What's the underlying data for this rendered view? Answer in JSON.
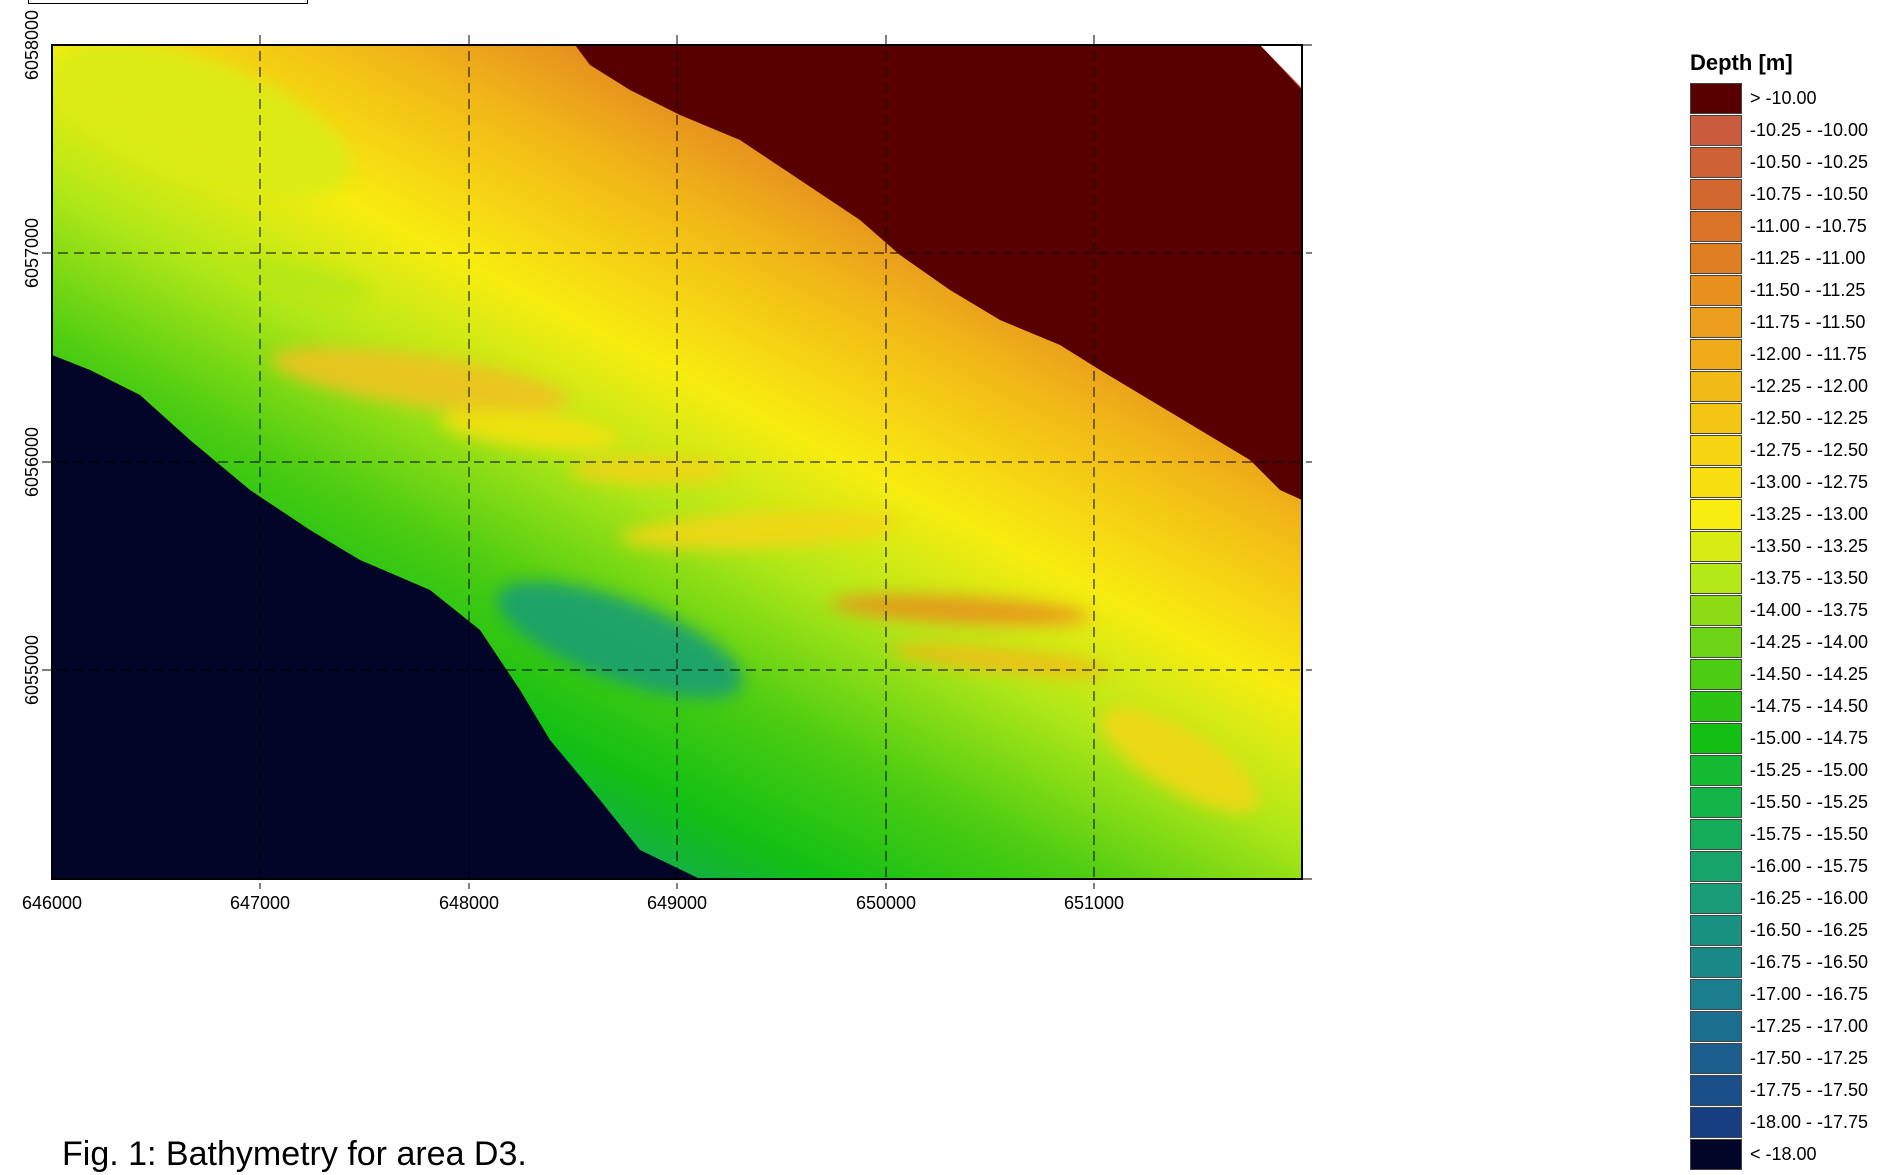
{
  "caption": "Fig. 1: Bathymetry for area D3.",
  "legend": {
    "title": "Depth [m]",
    "classes": [
      {
        "label": "> -10.00",
        "color": "#580000"
      },
      {
        "label": "-10.25 - -10.00",
        "color": "#c85c3c"
      },
      {
        "label": "-10.50 - -10.25",
        "color": "#cc6236"
      },
      {
        "label": "-10.75 - -10.50",
        "color": "#d2682f"
      },
      {
        "label": "-11.00 - -10.75",
        "color": "#d87328"
      },
      {
        "label": "-11.25 - -11.00",
        "color": "#e07e22"
      },
      {
        "label": "-11.50 - -11.25",
        "color": "#e8901e"
      },
      {
        "label": "-11.75 - -11.50",
        "color": "#eb9d1c"
      },
      {
        "label": "-12.00 - -11.75",
        "color": "#efab1a"
      },
      {
        "label": "-12.25 - -12.00",
        "color": "#f2ba17"
      },
      {
        "label": "-12.50 - -12.25",
        "color": "#f4c614"
      },
      {
        "label": "-12.75 - -12.50",
        "color": "#f6d412"
      },
      {
        "label": "-13.00 - -12.75",
        "color": "#f8e010"
      },
      {
        "label": "-13.25 - -13.00",
        "color": "#f8ec10"
      },
      {
        "label": "-13.50 - -13.25",
        "color": "#d8ec14"
      },
      {
        "label": "-13.75 - -13.50",
        "color": "#b4e818"
      },
      {
        "label": "-14.00 - -13.75",
        "color": "#8edc16"
      },
      {
        "label": "-14.25 - -14.00",
        "color": "#6cd414"
      },
      {
        "label": "-14.50 - -14.25",
        "color": "#4ccc12"
      },
      {
        "label": "-14.75 - -14.50",
        "color": "#2cc412"
      },
      {
        "label": "-15.00 - -14.75",
        "color": "#12c014"
      },
      {
        "label": "-15.25 - -15.00",
        "color": "#14bb32"
      },
      {
        "label": "-15.50 - -15.25",
        "color": "#14b548"
      },
      {
        "label": "-15.75 - -15.50",
        "color": "#16ad5a"
      },
      {
        "label": "-16.00 - -15.75",
        "color": "#17a46a"
      },
      {
        "label": "-16.25 - -16.00",
        "color": "#199c78"
      },
      {
        "label": "-16.50 - -16.25",
        "color": "#1a9282"
      },
      {
        "label": "-16.75 - -16.50",
        "color": "#1b8888"
      },
      {
        "label": "-17.00 - -16.75",
        "color": "#1c7e8e"
      },
      {
        "label": "-17.25 - -17.00",
        "color": "#1d6f90"
      },
      {
        "label": "-17.50 - -17.25",
        "color": "#1c5e8e"
      },
      {
        "label": "-17.75 - -17.50",
        "color": "#1a4e88"
      },
      {
        "label": "-18.00 - -17.75",
        "color": "#183e82"
      },
      {
        "label": "< -18.00",
        "color": "#020528"
      }
    ]
  },
  "map": {
    "x_ticks": [
      "646000",
      "647000",
      "648000",
      "649000",
      "650000",
      "651000"
    ],
    "y_ticks": [
      "6058000",
      "6057000",
      "6056000",
      "6055000"
    ],
    "x_range": [
      646000,
      652000
    ],
    "y_range": [
      6054000,
      6058000
    ]
  }
}
